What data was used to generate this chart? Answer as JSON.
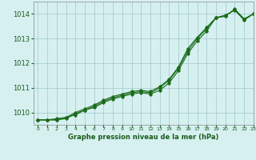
{
  "xlabel": "Graphe pression niveau de la mer (hPa)",
  "hours": [
    0,
    1,
    2,
    3,
    4,
    5,
    6,
    7,
    8,
    9,
    10,
    11,
    12,
    13,
    14,
    15,
    16,
    17,
    18,
    19,
    20,
    21,
    22,
    23
  ],
  "line1": [
    1009.7,
    1009.7,
    1009.7,
    1009.8,
    1009.9,
    1010.1,
    1010.2,
    1010.4,
    1010.55,
    1010.65,
    1010.75,
    1010.8,
    1010.75,
    1010.9,
    1011.2,
    1011.7,
    1012.4,
    1012.9,
    1013.3,
    1013.85,
    1013.9,
    1014.2,
    1013.8,
    1014.0
  ],
  "line2": [
    1009.7,
    1009.7,
    1009.75,
    1009.8,
    1010.0,
    1010.15,
    1010.3,
    1010.5,
    1010.65,
    1010.75,
    1010.85,
    1010.9,
    1010.85,
    1011.05,
    1011.35,
    1011.85,
    1012.6,
    1013.05,
    1013.45,
    1013.85,
    1013.95,
    1014.15,
    1013.75,
    1014.0
  ],
  "line3": [
    1009.7,
    1009.7,
    1009.7,
    1009.75,
    1009.95,
    1010.1,
    1010.25,
    1010.45,
    1010.6,
    1010.7,
    1010.8,
    1010.85,
    1010.8,
    1011.0,
    1011.3,
    1011.8,
    1012.5,
    1013.0,
    1013.4,
    1013.85,
    1013.92,
    1014.18,
    1013.78,
    1014.0
  ],
  "line_color": "#1a6b1a",
  "marker_color": "#1a6b1a",
  "bg_color": "#d6f0f0",
  "grid_color": "#a0c8c8",
  "axis_label_color": "#1a5c1a",
  "tick_label_color": "#1a5c1a",
  "ylim_min": 1009.5,
  "ylim_max": 1014.5,
  "yticks": [
    1010,
    1011,
    1012,
    1013,
    1014
  ],
  "xlim_min": -0.5,
  "xlim_max": 23
}
